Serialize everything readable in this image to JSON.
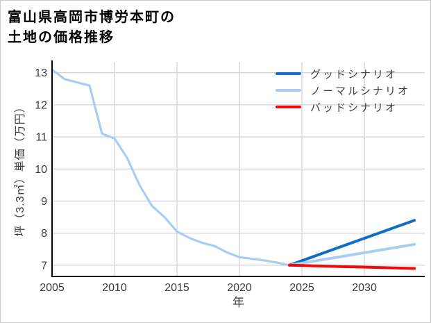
{
  "title": {
    "line1": "富山県高岡市博労本町の",
    "line2": "土地の価格推移"
  },
  "chart_data": {
    "type": "line",
    "title": "富山県高岡市博労本町の土地の価格推移",
    "xlabel": "年",
    "ylabel": "坪（3.3㎡）単価（万円）",
    "xlim": [
      2005,
      2034.83
    ],
    "ylim": [
      6.65,
      13.34
    ],
    "x_ticks": [
      2005,
      2010,
      2015,
      2020,
      2025,
      2030
    ],
    "y_ticks": [
      7,
      8,
      9,
      10,
      11,
      12,
      13
    ],
    "grid": true,
    "legend_position": "upper right",
    "colors": {
      "good": "#0f6fc6",
      "normal": "#a8cdf2",
      "bad": "#f00a0a",
      "historical": "#a8cdf2",
      "grid": "#d4d4d4",
      "spine": "#000000"
    },
    "series": [
      {
        "id": "historical",
        "label": "",
        "legend": false,
        "color": "#a8cdf2",
        "width": 3.2,
        "x": [
          2005,
          2006,
          2007,
          2008,
          2009,
          2010,
          2011,
          2012,
          2013,
          2014,
          2015,
          2016,
          2017,
          2018,
          2019,
          2020,
          2021,
          2022,
          2023,
          2024
        ],
        "values": [
          13.1,
          12.8,
          12.7,
          12.6,
          11.1,
          10.95,
          10.35,
          9.5,
          8.85,
          8.5,
          8.05,
          7.85,
          7.7,
          7.6,
          7.4,
          7.25,
          7.2,
          7.15,
          7.08,
          7.0
        ]
      },
      {
        "id": "good",
        "label": "グッドシナリオ",
        "legend": true,
        "color": "#0f6fc6",
        "width": 4,
        "x": [
          2024,
          2034
        ],
        "values": [
          7.0,
          8.4
        ]
      },
      {
        "id": "normal",
        "label": "ノーマルシナリオ",
        "legend": true,
        "color": "#a8cdf2",
        "width": 4,
        "x": [
          2024,
          2034
        ],
        "values": [
          7.0,
          7.65
        ]
      },
      {
        "id": "bad",
        "label": "バッドシナリオ",
        "legend": true,
        "color": "#f00a0a",
        "width": 4,
        "x": [
          2024,
          2034
        ],
        "values": [
          7.0,
          6.9
        ]
      }
    ]
  }
}
